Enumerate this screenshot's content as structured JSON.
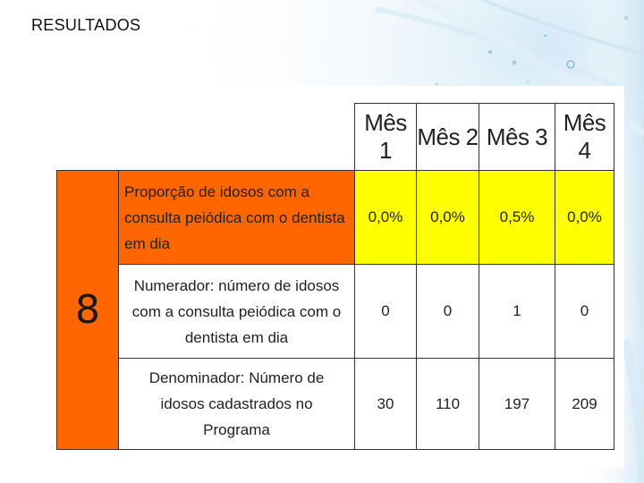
{
  "slide": {
    "title": "RESULTADOS"
  },
  "indicator": {
    "number": "8"
  },
  "table": {
    "months": [
      "Mês 1",
      "Mês 2",
      "Mês 3",
      "Mês 4"
    ],
    "rows": [
      {
        "label": "Proporção de idosos com  a consulta peiódica com o dentista em dia",
        "values": [
          "0,0%",
          "0,0%",
          "0,5%",
          "0,0%"
        ]
      },
      {
        "label": "Numerador: número de idosos com a consulta peiódica com o dentista em dia",
        "values": [
          "0",
          "0",
          "1",
          "0"
        ]
      },
      {
        "label": "Denominador: Número de idosos cadastrados no Programa",
        "values": [
          "30",
          "110",
          "197",
          "209"
        ]
      }
    ]
  },
  "colors": {
    "indicator_orange": "#ff6600",
    "highlight_yellow": "#ffff00"
  }
}
